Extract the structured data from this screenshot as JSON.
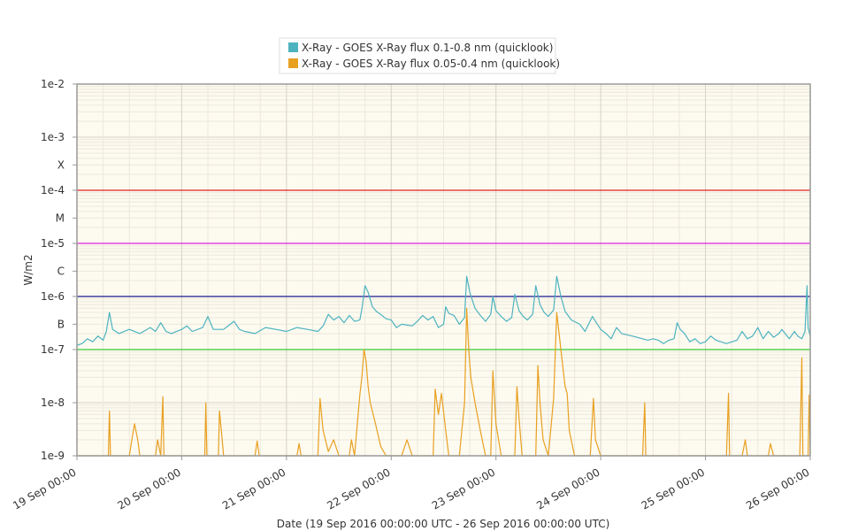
{
  "chart_data": {
    "type": "line",
    "title": "",
    "xlabel": "Date (19 Sep 2016 00:00:00 UTC - 26 Sep 2016 00:00:00 UTC)",
    "ylabel": "W/m2",
    "yscale": "log",
    "ylim": [
      1e-09,
      0.01
    ],
    "xlim": [
      "19 Sep 2016 00:00",
      "26 Sep 2016 00:00"
    ],
    "x_tick_labels": [
      "19 Sep 00:00",
      "20 Sep 00:00",
      "21 Sep 00:00",
      "22 Sep 00:00",
      "23 Sep 00:00",
      "24 Sep 00:00",
      "25 Sep 00:00",
      "26 Sep 00:00"
    ],
    "y_tick_labels": [
      {
        "label": "1e-2",
        "value": 0.01
      },
      {
        "label": "1e-3",
        "value": 0.001
      },
      {
        "label": "X",
        "value": 0.0003
      },
      {
        "label": "1e-4",
        "value": 0.0001
      },
      {
        "label": "M",
        "value": 3e-05
      },
      {
        "label": "1e-5",
        "value": 1e-05
      },
      {
        "label": "C",
        "value": 3e-06
      },
      {
        "label": "1e-6",
        "value": 1e-06
      },
      {
        "label": "B",
        "value": 3e-07
      },
      {
        "label": "1e-7",
        "value": 1e-07
      },
      {
        "label": "1e-8",
        "value": 1e-08
      },
      {
        "label": "1e-9",
        "value": 1e-09
      }
    ],
    "threshold_lines": [
      {
        "value": 0.0001,
        "color": "#e02020"
      },
      {
        "value": 1e-05,
        "color": "#e020e0"
      },
      {
        "value": 1e-06,
        "color": "#1a1a90"
      },
      {
        "value": 1e-07,
        "color": "#33cc33"
      }
    ],
    "grid": true,
    "legend_position": "top-center",
    "series": [
      {
        "name": "X-Ray - GOES X-Ray flux 0.1-0.8 nm (quicklook)",
        "color": "#4db3bf",
        "points": [
          [
            0.0,
            1.2e-07
          ],
          [
            0.05,
            1.3e-07
          ],
          [
            0.1,
            1.6e-07
          ],
          [
            0.15,
            1.4e-07
          ],
          [
            0.2,
            1.8e-07
          ],
          [
            0.25,
            1.5e-07
          ],
          [
            0.28,
            2.2e-07
          ],
          [
            0.31,
            5e-07
          ],
          [
            0.34,
            2.4e-07
          ],
          [
            0.4,
            2e-07
          ],
          [
            0.5,
            2.4e-07
          ],
          [
            0.6,
            2e-07
          ],
          [
            0.7,
            2.6e-07
          ],
          [
            0.75,
            2.2e-07
          ],
          [
            0.8,
            3.2e-07
          ],
          [
            0.85,
            2.2e-07
          ],
          [
            0.9,
            2e-07
          ],
          [
            1.0,
            2.4e-07
          ],
          [
            1.05,
            2.8e-07
          ],
          [
            1.1,
            2.2e-07
          ],
          [
            1.2,
            2.6e-07
          ],
          [
            1.25,
            4.2e-07
          ],
          [
            1.3,
            2.4e-07
          ],
          [
            1.4,
            2.4e-07
          ],
          [
            1.5,
            3.4e-07
          ],
          [
            1.55,
            2.4e-07
          ],
          [
            1.6,
            2.2e-07
          ],
          [
            1.7,
            2e-07
          ],
          [
            1.8,
            2.6e-07
          ],
          [
            1.9,
            2.4e-07
          ],
          [
            2.0,
            2.2e-07
          ],
          [
            2.1,
            2.6e-07
          ],
          [
            2.2,
            2.4e-07
          ],
          [
            2.3,
            2.2e-07
          ],
          [
            2.35,
            2.8e-07
          ],
          [
            2.4,
            4.6e-07
          ],
          [
            2.45,
            3.6e-07
          ],
          [
            2.5,
            4.2e-07
          ],
          [
            2.55,
            3.2e-07
          ],
          [
            2.6,
            4.4e-07
          ],
          [
            2.65,
            3.4e-07
          ],
          [
            2.7,
            3.6e-07
          ],
          [
            2.72,
            5.8e-07
          ],
          [
            2.75,
            1.6e-06
          ],
          [
            2.78,
            1.2e-06
          ],
          [
            2.82,
            6.4e-07
          ],
          [
            2.86,
            5.2e-07
          ],
          [
            2.9,
            4.6e-07
          ],
          [
            2.95,
            3.8e-07
          ],
          [
            3.0,
            3.6e-07
          ],
          [
            3.05,
            2.6e-07
          ],
          [
            3.1,
            3e-07
          ],
          [
            3.2,
            2.8e-07
          ],
          [
            3.25,
            3.4e-07
          ],
          [
            3.3,
            4.4e-07
          ],
          [
            3.35,
            3.6e-07
          ],
          [
            3.4,
            4.2e-07
          ],
          [
            3.45,
            2.6e-07
          ],
          [
            3.5,
            3e-07
          ],
          [
            3.52,
            6.4e-07
          ],
          [
            3.55,
            4.8e-07
          ],
          [
            3.6,
            4.4e-07
          ],
          [
            3.65,
            3e-07
          ],
          [
            3.7,
            4e-07
          ],
          [
            3.72,
            2.4e-06
          ],
          [
            3.75,
            1.2e-06
          ],
          [
            3.8,
            6e-07
          ],
          [
            3.85,
            4.4e-07
          ],
          [
            3.9,
            3.4e-07
          ],
          [
            3.95,
            4.6e-07
          ],
          [
            3.97,
            1e-06
          ],
          [
            4.0,
            5.4e-07
          ],
          [
            4.05,
            4.2e-07
          ],
          [
            4.1,
            3.4e-07
          ],
          [
            4.15,
            4e-07
          ],
          [
            4.18,
            1.1e-06
          ],
          [
            4.22,
            5.4e-07
          ],
          [
            4.26,
            4.2e-07
          ],
          [
            4.3,
            3.6e-07
          ],
          [
            4.35,
            4.6e-07
          ],
          [
            4.38,
            1.6e-06
          ],
          [
            4.42,
            7e-07
          ],
          [
            4.46,
            5e-07
          ],
          [
            4.5,
            4.2e-07
          ],
          [
            4.55,
            5.6e-07
          ],
          [
            4.58,
            2.4e-06
          ],
          [
            4.62,
            1e-06
          ],
          [
            4.66,
            5.2e-07
          ],
          [
            4.72,
            3.6e-07
          ],
          [
            4.8,
            3e-07
          ],
          [
            4.85,
            2.2e-07
          ],
          [
            4.92,
            4.2e-07
          ],
          [
            4.95,
            3.4e-07
          ],
          [
            5.0,
            2.4e-07
          ],
          [
            5.05,
            2e-07
          ],
          [
            5.1,
            1.6e-07
          ],
          [
            5.15,
            2.6e-07
          ],
          [
            5.2,
            2e-07
          ],
          [
            5.3,
            1.8e-07
          ],
          [
            5.4,
            1.6e-07
          ],
          [
            5.45,
            1.5e-07
          ],
          [
            5.5,
            1.6e-07
          ],
          [
            5.55,
            1.5e-07
          ],
          [
            5.6,
            1.3e-07
          ],
          [
            5.65,
            1.5e-07
          ],
          [
            5.7,
            1.6e-07
          ],
          [
            5.73,
            3.2e-07
          ],
          [
            5.76,
            2.4e-07
          ],
          [
            5.8,
            2e-07
          ],
          [
            5.85,
            1.4e-07
          ],
          [
            5.9,
            1.6e-07
          ],
          [
            5.95,
            1.3e-07
          ],
          [
            6.0,
            1.4e-07
          ],
          [
            6.05,
            1.8e-07
          ],
          [
            6.1,
            1.5e-07
          ],
          [
            6.2,
            1.3e-07
          ],
          [
            6.3,
            1.5e-07
          ],
          [
            6.35,
            2.2e-07
          ],
          [
            6.4,
            1.6e-07
          ],
          [
            6.45,
            1.8e-07
          ],
          [
            6.5,
            2.6e-07
          ],
          [
            6.55,
            1.6e-07
          ],
          [
            6.6,
            2.2e-07
          ],
          [
            6.65,
            1.7e-07
          ],
          [
            6.7,
            2e-07
          ],
          [
            6.73,
            2.4e-07
          ],
          [
            6.8,
            1.6e-07
          ],
          [
            6.85,
            2.2e-07
          ],
          [
            6.88,
            1.8e-07
          ],
          [
            6.92,
            1.6e-07
          ],
          [
            6.95,
            2.2e-07
          ],
          [
            6.97,
            1.6e-06
          ],
          [
            6.98,
            2.6e-07
          ],
          [
            7.0,
            1.8e-07
          ]
        ]
      },
      {
        "name": "X-Ray - GOES X-Ray flux 0.05-0.4 nm (quicklook)",
        "color": "#e8a020",
        "points": [
          [
            0.0,
            1e-09
          ],
          [
            0.3,
            1e-09
          ],
          [
            0.31,
            7e-09
          ],
          [
            0.32,
            1e-09
          ],
          [
            0.5,
            1e-09
          ],
          [
            0.52,
            1.8e-09
          ],
          [
            0.55,
            4e-09
          ],
          [
            0.58,
            2e-09
          ],
          [
            0.6,
            1e-09
          ],
          [
            0.75,
            1e-09
          ],
          [
            0.77,
            2e-09
          ],
          [
            0.8,
            1e-09
          ],
          [
            0.82,
            1.3e-08
          ],
          [
            0.83,
            1e-09
          ],
          [
            1.0,
            1e-09
          ],
          [
            1.22,
            1e-09
          ],
          [
            1.23,
            1e-08
          ],
          [
            1.24,
            1e-09
          ],
          [
            1.35,
            1e-09
          ],
          [
            1.36,
            7e-09
          ],
          [
            1.38,
            2.8e-09
          ],
          [
            1.4,
            1e-09
          ],
          [
            1.7,
            1e-09
          ],
          [
            1.72,
            1.9e-09
          ],
          [
            1.74,
            1e-09
          ],
          [
            2.1,
            1e-09
          ],
          [
            2.12,
            1.7e-09
          ],
          [
            2.14,
            1e-09
          ],
          [
            2.3,
            1e-09
          ],
          [
            2.32,
            1.2e-08
          ],
          [
            2.35,
            3e-09
          ],
          [
            2.4,
            1.2e-09
          ],
          [
            2.45,
            2e-09
          ],
          [
            2.5,
            1e-09
          ],
          [
            2.6,
            1e-09
          ],
          [
            2.62,
            2e-09
          ],
          [
            2.65,
            1e-09
          ],
          [
            2.7,
            1.4e-08
          ],
          [
            2.72,
            3e-08
          ],
          [
            2.74,
            1e-07
          ],
          [
            2.76,
            6e-08
          ],
          [
            2.78,
            2e-08
          ],
          [
            2.8,
            1e-08
          ],
          [
            2.85,
            4e-09
          ],
          [
            2.9,
            1.5e-09
          ],
          [
            2.95,
            1e-09
          ],
          [
            3.1,
            1e-09
          ],
          [
            3.15,
            2e-09
          ],
          [
            3.2,
            1e-09
          ],
          [
            3.4,
            1e-09
          ],
          [
            3.42,
            1.8e-08
          ],
          [
            3.45,
            6e-09
          ],
          [
            3.48,
            1.5e-08
          ],
          [
            3.52,
            3e-09
          ],
          [
            3.55,
            1e-09
          ],
          [
            3.65,
            1e-09
          ],
          [
            3.7,
            1e-08
          ],
          [
            3.72,
            6e-07
          ],
          [
            3.74,
            1e-07
          ],
          [
            3.76,
            3e-08
          ],
          [
            3.8,
            1e-08
          ],
          [
            3.85,
            3e-09
          ],
          [
            3.9,
            1e-09
          ],
          [
            3.95,
            1e-09
          ],
          [
            3.97,
            4e-08
          ],
          [
            4.0,
            4e-09
          ],
          [
            4.05,
            1e-09
          ],
          [
            4.18,
            1e-09
          ],
          [
            4.2,
            2e-08
          ],
          [
            4.22,
            5e-09
          ],
          [
            4.25,
            1e-09
          ],
          [
            4.38,
            1e-09
          ],
          [
            4.4,
            5e-08
          ],
          [
            4.42,
            1e-08
          ],
          [
            4.45,
            2e-09
          ],
          [
            4.5,
            1e-09
          ],
          [
            4.55,
            1.2e-08
          ],
          [
            4.58,
            5e-07
          ],
          [
            4.62,
            1e-07
          ],
          [
            4.66,
            2e-08
          ],
          [
            4.68,
            1.5e-08
          ],
          [
            4.7,
            3e-09
          ],
          [
            4.75,
            1e-09
          ],
          [
            4.9,
            1e-09
          ],
          [
            4.93,
            1.2e-08
          ],
          [
            4.95,
            2e-09
          ],
          [
            5.0,
            1e-09
          ],
          [
            5.4,
            1e-09
          ],
          [
            5.42,
            1e-08
          ],
          [
            5.43,
            1e-09
          ],
          [
            6.2,
            1e-09
          ],
          [
            6.22,
            1.5e-08
          ],
          [
            6.23,
            1e-09
          ],
          [
            6.35,
            1e-09
          ],
          [
            6.38,
            2e-09
          ],
          [
            6.4,
            1e-09
          ],
          [
            6.6,
            1e-09
          ],
          [
            6.62,
            1.7e-09
          ],
          [
            6.65,
            1e-09
          ],
          [
            6.9,
            1e-09
          ],
          [
            6.92,
            7e-08
          ],
          [
            6.93,
            1e-09
          ],
          [
            6.98,
            1e-09
          ],
          [
            6.99,
            1.4e-08
          ],
          [
            7.0,
            1e-09
          ]
        ]
      }
    ]
  }
}
